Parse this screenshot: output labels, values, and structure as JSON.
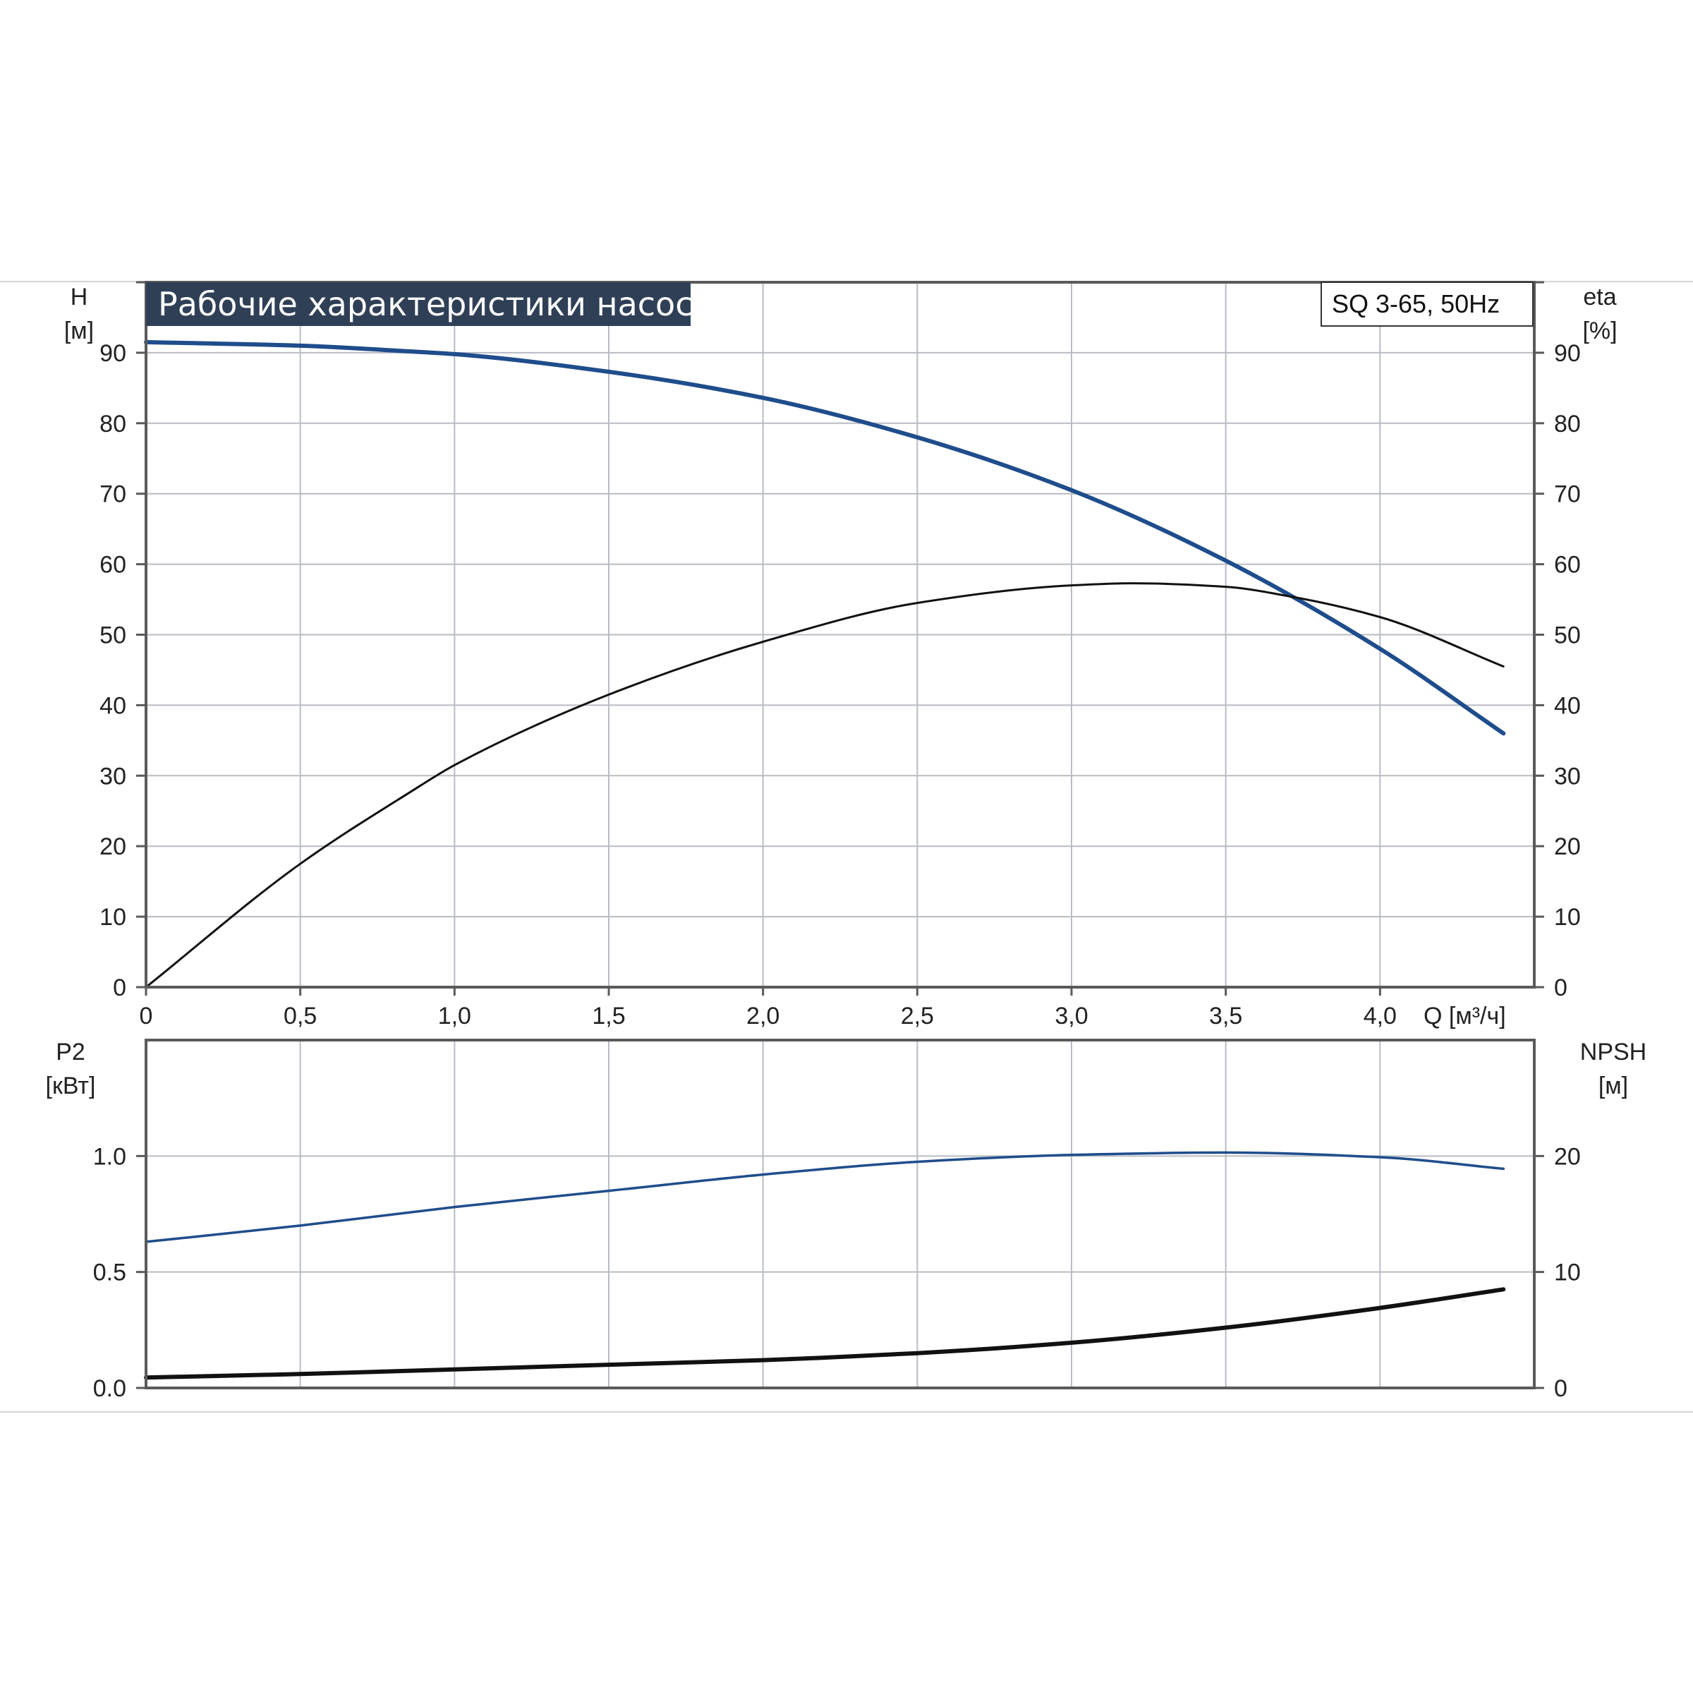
{
  "title": "Рабочие характеристики насоса",
  "model_label": "SQ 3-65, 50Hz",
  "colors": {
    "blue_curve": "#1f4d8c",
    "black_curve": "#111111",
    "title_bg": "#2f3f56",
    "grid": "#b8bcc4"
  },
  "chart_data": [
    {
      "type": "line",
      "panel": "upper",
      "title": "Рабочие характеристики насоса",
      "xlabel": "Q [м³/ч]",
      "ylabel_left": [
        "H",
        "[м]"
      ],
      "ylabel_right": [
        "eta",
        "[%]"
      ],
      "xlim": [
        0,
        4.5
      ],
      "ylim": [
        0,
        100
      ],
      "x_ticks": [
        "0",
        "0,5",
        "1,0",
        "1,5",
        "2,0",
        "2,5",
        "3,0",
        "3,5",
        "4,0"
      ],
      "x_tick_values": [
        0,
        0.5,
        1.0,
        1.5,
        2.0,
        2.5,
        3.0,
        3.5,
        4.0
      ],
      "y_ticks_left": [
        "0",
        "10",
        "20",
        "30",
        "40",
        "50",
        "60",
        "70",
        "80",
        "90"
      ],
      "y_ticks_right": [
        "0",
        "10",
        "20",
        "30",
        "40",
        "50",
        "60",
        "70",
        "80",
        "90"
      ],
      "y_tick_values": [
        0,
        10,
        20,
        30,
        40,
        50,
        60,
        70,
        80,
        90
      ],
      "grid": true,
      "series": [
        {
          "key": "head",
          "color": "#1f4d8c",
          "x": [
            0,
            0.5,
            0.85,
            1.0,
            1.5,
            2.0,
            2.5,
            3.0,
            3.5,
            4.0,
            4.4
          ],
          "y": [
            91.5,
            91.0,
            90.2,
            89.8,
            87.3,
            83.6,
            78.0,
            70.5,
            60.5,
            48.0,
            36.0
          ]
        },
        {
          "key": "efficiency",
          "color": "#111111",
          "x": [
            0,
            0.5,
            0.85,
            1.0,
            1.5,
            2.0,
            2.5,
            3.0,
            3.2,
            3.5,
            3.7,
            4.0,
            4.4
          ],
          "y": [
            0,
            17.5,
            27.5,
            31.5,
            41.5,
            49.0,
            54.5,
            57.0,
            57.3,
            56.8,
            55.5,
            52.5,
            45.5
          ]
        }
      ]
    },
    {
      "type": "line",
      "panel": "lower",
      "xlim": [
        0,
        4.5
      ],
      "ylim": [
        0,
        1.5
      ],
      "ylabel_left": [
        "P2",
        "[кВт]"
      ],
      "ylabel_right": [
        "NPSH",
        "[м]"
      ],
      "y_ticks_left": [
        "0.0",
        "0.5",
        "1.0"
      ],
      "y_tick_values_left": [
        0,
        0.5,
        1.0
      ],
      "y_ticks_right": [
        "0",
        "10",
        "20"
      ],
      "y_tick_values_right": [
        0,
        10,
        20
      ],
      "right_ylim": [
        0,
        30
      ],
      "grid": true,
      "series": [
        {
          "key": "power_p2",
          "axis": "left",
          "color": "#1f4d8c",
          "x": [
            0,
            0.5,
            1.0,
            1.5,
            2.0,
            2.5,
            3.0,
            3.5,
            4.0,
            4.4
          ],
          "y": [
            0.63,
            0.7,
            0.78,
            0.85,
            0.92,
            0.975,
            1.005,
            1.015,
            0.995,
            0.945
          ]
        },
        {
          "key": "npsh",
          "axis": "right",
          "color": "#111111",
          "x": [
            0,
            0.5,
            1.0,
            1.5,
            2.0,
            2.5,
            3.0,
            3.5,
            4.0,
            4.4
          ],
          "y": [
            0.9,
            1.2,
            1.6,
            2.0,
            2.4,
            3.0,
            3.9,
            5.2,
            6.9,
            8.5
          ]
        }
      ]
    }
  ]
}
